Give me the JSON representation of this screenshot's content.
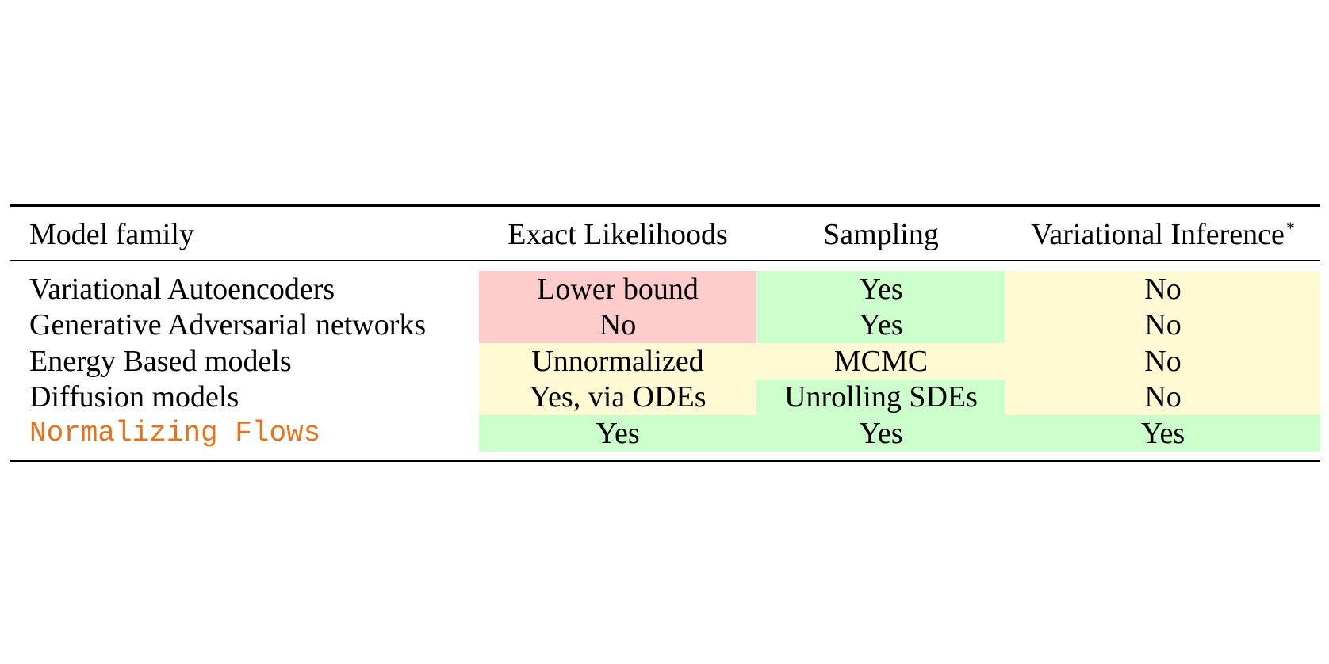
{
  "table": {
    "headers": [
      "Model family",
      "Exact Likelihoods",
      "Sampling",
      "Variational Inference"
    ],
    "header_footnote_marker": "*",
    "rows": [
      {
        "family": "Variational Autoencoders",
        "likelihood": "Lower bound",
        "sampling": "Yes",
        "vi": "No"
      },
      {
        "family": "Generative Adversarial networks",
        "likelihood": "No",
        "sampling": "Yes",
        "vi": "No"
      },
      {
        "family": "Energy Based models",
        "likelihood": "Unnormalized",
        "sampling": "MCMC",
        "vi": "No"
      },
      {
        "family": "Diffusion models",
        "likelihood": "Yes, via ODEs",
        "sampling": "Unrolling SDEs",
        "vi": "No"
      },
      {
        "family": "Normalizing Flows",
        "likelihood": "Yes",
        "sampling": "Yes",
        "vi": "Yes"
      }
    ],
    "colors": {
      "red": "#ffcccc",
      "green": "#ccffcc",
      "yellow": "#fffad4",
      "highlight_text": "#e8711a"
    }
  }
}
